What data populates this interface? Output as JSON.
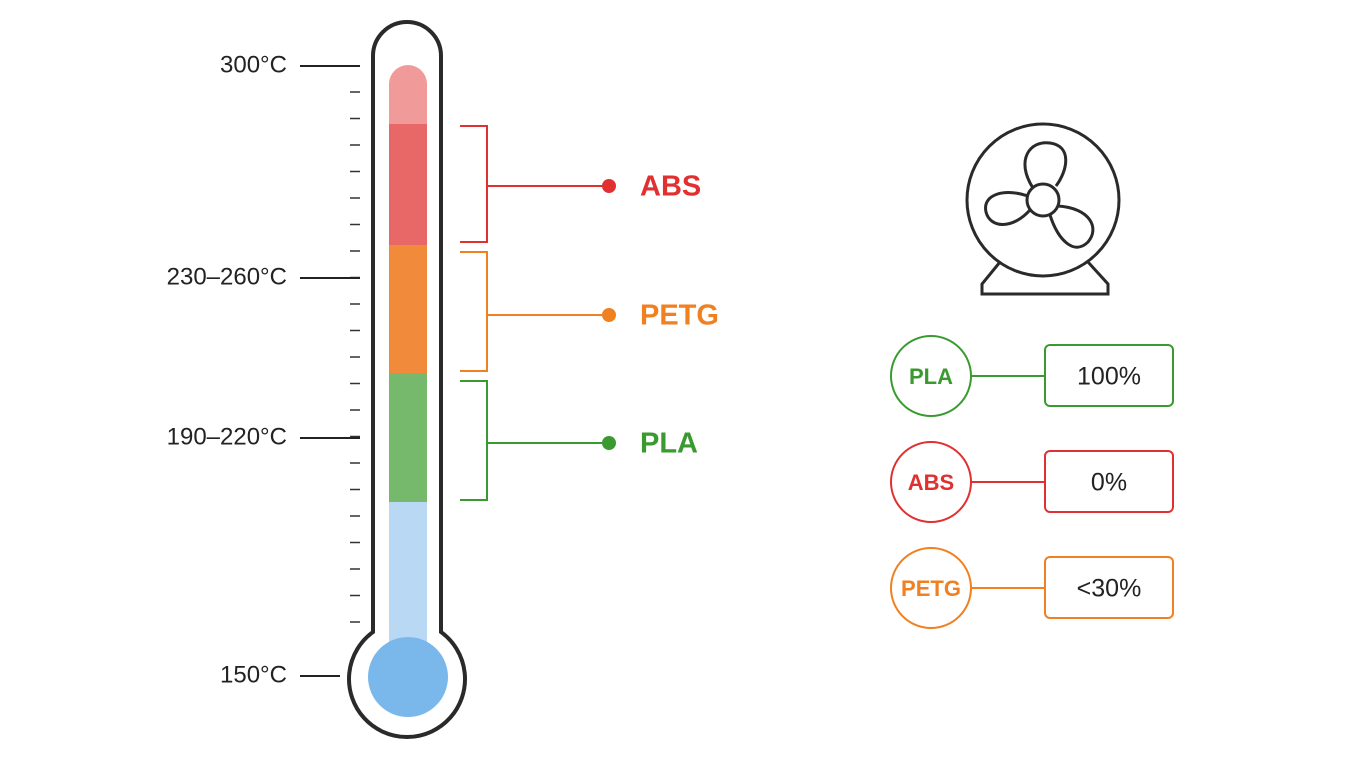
{
  "thermometer": {
    "labels": [
      "300°C",
      "230–260°C",
      "190–220°C",
      "150°C"
    ]
  },
  "materials": [
    {
      "label": "ABS"
    },
    {
      "label": "PETG"
    },
    {
      "label": "PLA"
    }
  ],
  "fan_settings": [
    {
      "material": "PLA",
      "speed": "100%"
    },
    {
      "material": "ABS",
      "speed": "0%"
    },
    {
      "material": "PETG",
      "speed": "<30%"
    }
  ]
}
